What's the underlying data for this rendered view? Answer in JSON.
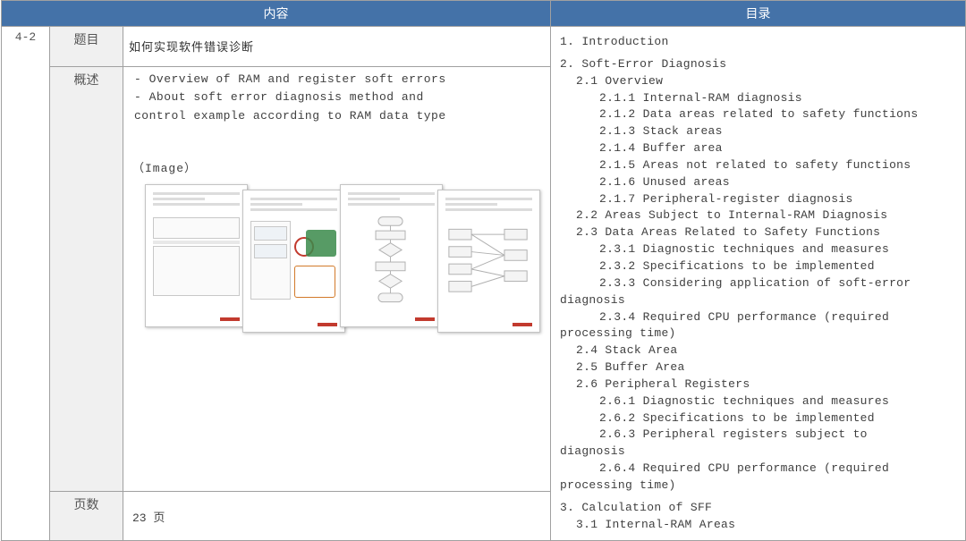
{
  "headers": {
    "content": "内容",
    "toc": "目录"
  },
  "sectionId": "4-2",
  "rows": {
    "title": "题目",
    "overview": "概述",
    "pages": "页数"
  },
  "titleText": "如何实现软件错误诊断",
  "bullets": [
    "- Overview of RAM and register soft errors",
    "- About soft error diagnosis method and",
    "  control example according to RAM data type"
  ],
  "imageLabel": "（Image）",
  "pageCount": "23 页",
  "toc": [
    {
      "lvl": "l1",
      "t": "1.  Introduction"
    },
    {
      "lvl": "spacer",
      "t": ""
    },
    {
      "lvl": "l1",
      "t": "2.  Soft-Error Diagnosis"
    },
    {
      "lvl": "l2",
      "t": "2.1  Overview"
    },
    {
      "lvl": "l3",
      "t": "2.1.1  Internal-RAM diagnosis"
    },
    {
      "lvl": "l3",
      "t": "2.1.2  Data areas related to safety functions"
    },
    {
      "lvl": "l3",
      "t": "2.1.3  Stack areas"
    },
    {
      "lvl": "l3",
      "t": "2.1.4  Buffer area"
    },
    {
      "lvl": "l3",
      "t": "2.1.5  Areas not related to safety functions"
    },
    {
      "lvl": "l3",
      "t": "2.1.6  Unused areas"
    },
    {
      "lvl": "l3",
      "t": "2.1.7  Peripheral-register diagnosis"
    },
    {
      "lvl": "l2",
      "t": "2.2  Areas Subject to Internal-RAM Diagnosis"
    },
    {
      "lvl": "l2",
      "t": "2.3  Data Areas Related to Safety Functions"
    },
    {
      "lvl": "l3",
      "t": "2.3.1  Diagnostic techniques and measures"
    },
    {
      "lvl": "l3",
      "t": "2.3.2  Specifications to be implemented"
    },
    {
      "lvl": "l3",
      "t": "2.3.3  Considering application of soft-error"
    },
    {
      "lvl": "cont",
      "t": "diagnosis"
    },
    {
      "lvl": "l3",
      "t": "2.3.4  Required CPU performance (required"
    },
    {
      "lvl": "cont",
      "t": "processing time)"
    },
    {
      "lvl": "l2",
      "t": "2.4  Stack Area"
    },
    {
      "lvl": "l2",
      "t": "2.5  Buffer Area"
    },
    {
      "lvl": "l2",
      "t": "2.6  Peripheral Registers"
    },
    {
      "lvl": "l3",
      "t": "2.6.1  Diagnostic techniques and measures"
    },
    {
      "lvl": "l3",
      "t": "2.6.2  Specifications to be implemented"
    },
    {
      "lvl": "l3",
      "t": "2.6.3  Peripheral registers subject to"
    },
    {
      "lvl": "cont",
      "t": "diagnosis"
    },
    {
      "lvl": "l3",
      "t": "2.6.4  Required CPU performance (required"
    },
    {
      "lvl": "cont",
      "t": "processing time)"
    },
    {
      "lvl": "spacer",
      "t": ""
    },
    {
      "lvl": "l1",
      "t": "3.  Calculation of SFF"
    },
    {
      "lvl": "l2",
      "t": "3.1  Internal-RAM Areas"
    }
  ],
  "colors": {
    "headerBg": "#4472a8",
    "headerFg": "#ffffff",
    "border": "#a0a0a0",
    "labelBg": "#f0f0f0",
    "accentRed": "#c23a2e",
    "accentGreen": "#3a8a4a",
    "accentOrange": "#d27a2a"
  }
}
